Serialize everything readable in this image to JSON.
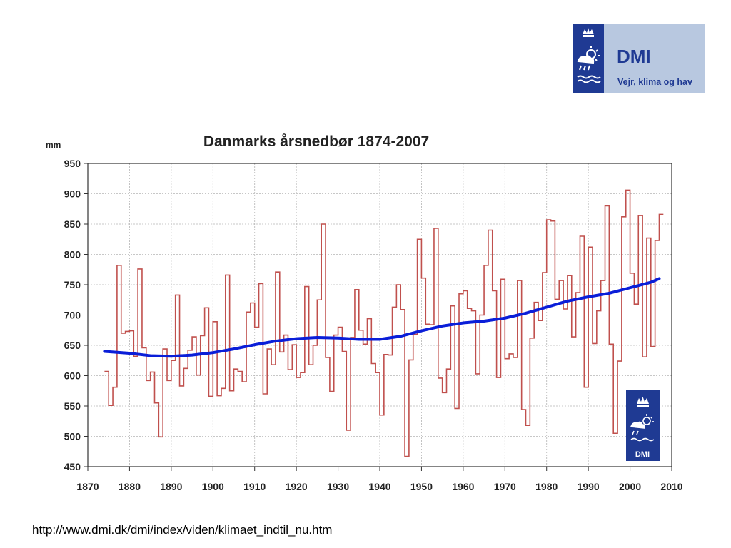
{
  "logo": {
    "brand": "DMI",
    "tagline": "Vejr, klima og hav",
    "small_brand": "DMI"
  },
  "footer": {
    "source_url": "http://www.dmi.dk/dmi/index/viden/klimaet_indtil_nu.htm"
  },
  "colors": {
    "annual": "#c0504d",
    "trend": "#0a1ed8",
    "logo_dark": "#1f3a93",
    "logo_light": "#b8c8e0"
  },
  "chart_data": {
    "type": "line",
    "title": "Danmarks årsnedbør 1874-2007",
    "ylabel": "mm",
    "xlabel": "",
    "xlim": [
      1870,
      2010
    ],
    "ylim": [
      450,
      950
    ],
    "xticks": [
      1870,
      1880,
      1890,
      1900,
      1910,
      1920,
      1930,
      1940,
      1950,
      1960,
      1970,
      1980,
      1990,
      2000,
      2010
    ],
    "yticks": [
      450,
      500,
      550,
      600,
      650,
      700,
      750,
      800,
      850,
      900,
      950
    ],
    "grid": true,
    "series": [
      {
        "name": "",
        "style": "step",
        "x": [
          1874,
          1875,
          1876,
          1877,
          1878,
          1879,
          1880,
          1881,
          1882,
          1883,
          1884,
          1885,
          1886,
          1887,
          1888,
          1889,
          1890,
          1891,
          1892,
          1893,
          1894,
          1895,
          1896,
          1897,
          1898,
          1899,
          1900,
          1901,
          1902,
          1903,
          1904,
          1905,
          1906,
          1907,
          1908,
          1909,
          1910,
          1911,
          1912,
          1913,
          1914,
          1915,
          1916,
          1917,
          1918,
          1919,
          1920,
          1921,
          1922,
          1923,
          1924,
          1925,
          1926,
          1927,
          1928,
          1929,
          1930,
          1931,
          1932,
          1933,
          1934,
          1935,
          1936,
          1937,
          1938,
          1939,
          1940,
          1941,
          1942,
          1943,
          1944,
          1945,
          1946,
          1947,
          1948,
          1949,
          1950,
          1951,
          1952,
          1953,
          1954,
          1955,
          1956,
          1957,
          1958,
          1959,
          1960,
          1961,
          1962,
          1963,
          1964,
          1965,
          1966,
          1967,
          1968,
          1969,
          1970,
          1971,
          1972,
          1973,
          1974,
          1975,
          1976,
          1977,
          1978,
          1979,
          1980,
          1981,
          1982,
          1983,
          1984,
          1985,
          1986,
          1987,
          1988,
          1989,
          1990,
          1991,
          1992,
          1993,
          1994,
          1995,
          1996,
          1997,
          1998,
          1999,
          2000,
          2001,
          2002,
          2003,
          2004,
          2005,
          2006,
          2007
        ],
        "y": [
          607,
          551,
          581,
          782,
          670,
          673,
          674,
          632,
          776,
          646,
          592,
          606,
          555,
          499,
          644,
          592,
          625,
          733,
          583,
          612,
          642,
          664,
          601,
          666,
          712,
          566,
          689,
          567,
          579,
          766,
          575,
          611,
          607,
          590,
          705,
          720,
          680,
          752,
          570,
          644,
          618,
          771,
          639,
          667,
          610,
          651,
          597,
          605,
          747,
          618,
          650,
          725,
          850,
          630,
          574,
          667,
          680,
          640,
          510,
          663,
          742,
          675,
          652,
          694,
          620,
          605,
          535,
          635,
          634,
          713,
          750,
          709,
          467,
          626,
          668,
          825,
          761,
          685,
          684,
          843,
          596,
          572,
          611,
          715,
          546,
          735,
          740,
          711,
          707,
          603,
          700,
          782,
          840,
          740,
          597,
          759,
          628,
          636,
          630,
          757,
          544,
          518,
          662,
          721,
          691,
          770,
          857,
          855,
          726,
          757,
          710,
          765,
          664,
          737,
          830,
          581,
          812,
          653,
          707,
          757,
          880,
          652,
          505,
          624,
          862,
          906,
          769,
          718,
          864,
          631,
          827,
          648,
          823,
          866
        ]
      },
      {
        "name": "",
        "style": "smooth",
        "x": [
          1874,
          1880,
          1885,
          1890,
          1895,
          1900,
          1905,
          1910,
          1915,
          1920,
          1925,
          1930,
          1935,
          1940,
          1945,
          1950,
          1955,
          1960,
          1965,
          1970,
          1975,
          1980,
          1985,
          1990,
          1995,
          2000,
          2005,
          2007
        ],
        "y": [
          640,
          637,
          633,
          632,
          634,
          638,
          644,
          651,
          657,
          661,
          663,
          662,
          660,
          660,
          665,
          674,
          682,
          687,
          690,
          695,
          703,
          713,
          723,
          730,
          736,
          745,
          754,
          760
        ]
      }
    ]
  }
}
